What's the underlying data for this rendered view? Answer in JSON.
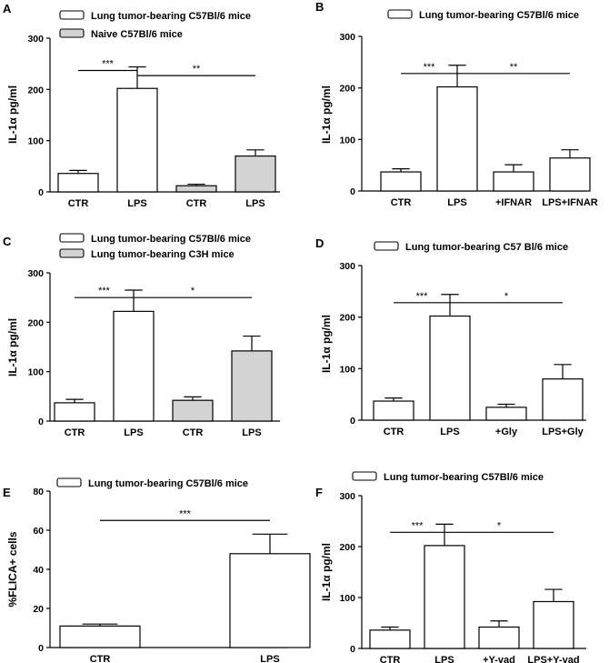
{
  "colors": {
    "white": "#ffffff",
    "gray": "#d3d3d3",
    "ink": "#000000"
  },
  "chart_data": [
    {
      "panel": "A",
      "type": "bar",
      "ylabel": "IL-1α pg/ml",
      "ylim": [
        0,
        300
      ],
      "yticks": [
        "0",
        "100",
        "200",
        "300"
      ],
      "legend": [
        {
          "label": "Lung tumor-bearing C57Bl/6 mice",
          "fill": "white"
        },
        {
          "label": "Naive C57Bl/6 mice",
          "fill": "gray"
        }
      ],
      "categories": [
        "CTR",
        "LPS",
        "CTR",
        "LPS"
      ],
      "values": [
        36,
        202,
        12,
        70
      ],
      "errors": [
        6,
        42,
        3,
        12
      ],
      "fills": [
        "white",
        "white",
        "gray",
        "gray"
      ],
      "significance": [
        {
          "from": 0,
          "to": 1,
          "y": 237,
          "label": "***"
        },
        {
          "from": 1,
          "to": 3,
          "y": 227,
          "label": "**"
        }
      ]
    },
    {
      "panel": "B",
      "type": "bar",
      "ylabel": "IL-1α pg/ml",
      "ylim": [
        0,
        300
      ],
      "yticks": [
        "0",
        "100",
        "200",
        "300"
      ],
      "legend": [
        {
          "label": "Lung tumor-bearing C57Bl/6 mice",
          "fill": "white"
        }
      ],
      "categories": [
        "CTR",
        "LPS",
        "+IFNAR",
        "LPS+IFNAR"
      ],
      "values": [
        37,
        202,
        37,
        64
      ],
      "errors": [
        6,
        42,
        14,
        16
      ],
      "fills": [
        "white",
        "white",
        "white",
        "white"
      ],
      "significance": [
        {
          "from": 0,
          "to": 1,
          "y": 228,
          "label": "***"
        },
        {
          "from": 1,
          "to": 3,
          "y": 228,
          "label": "**"
        }
      ]
    },
    {
      "panel": "C",
      "type": "bar",
      "ylabel": "IL-1α pg/ml",
      "ylim": [
        0,
        300
      ],
      "yticks": [
        "0",
        "100",
        "200",
        "300"
      ],
      "legend": [
        {
          "label": "Lung tumor-bearing C57Bl/6 mice",
          "fill": "white"
        },
        {
          "label": "Lung tumor-bearing C3H mice",
          "fill": "gray"
        }
      ],
      "categories": [
        "CTR",
        "LPS",
        "CTR",
        "LPS"
      ],
      "values": [
        37,
        222,
        42,
        142
      ],
      "errors": [
        7,
        43,
        7,
        30
      ],
      "fills": [
        "white",
        "white",
        "gray",
        "gray"
      ],
      "significance": [
        {
          "from": 0,
          "to": 1,
          "y": 250,
          "label": "***"
        },
        {
          "from": 1,
          "to": 3,
          "y": 250,
          "label": "*"
        }
      ]
    },
    {
      "panel": "D",
      "type": "bar",
      "ylabel": "IL-1α pg/ml",
      "ylim": [
        0,
        300
      ],
      "yticks": [
        "0",
        "100",
        "200",
        "300"
      ],
      "legend": [
        {
          "label": "Lung tumor-bearing C57 Bl/6 mice",
          "fill": "white"
        }
      ],
      "categories": [
        "CTR",
        "LPS",
        "+Gly",
        "LPS+Gly"
      ],
      "values": [
        37,
        202,
        25,
        80
      ],
      "errors": [
        6,
        42,
        6,
        28
      ],
      "fills": [
        "white",
        "white",
        "white",
        "white"
      ],
      "significance": [
        {
          "from": 0,
          "to": 1,
          "y": 228,
          "label": "***"
        },
        {
          "from": 1,
          "to": 3,
          "y": 228,
          "label": "*"
        }
      ]
    },
    {
      "panel": "E",
      "type": "bar",
      "ylabel": "%FLICA+ cells",
      "ylim": [
        0,
        80
      ],
      "yticks": [
        "0",
        "20",
        "40",
        "60",
        "80"
      ],
      "legend": [
        {
          "label": "Lung tumor-bearing C57Bl/6 mice",
          "fill": "white"
        }
      ],
      "categories": [
        "CTR",
        "LPS"
      ],
      "values": [
        11,
        48
      ],
      "errors": [
        1,
        10
      ],
      "fills": [
        "white",
        "white"
      ],
      "significance": [
        {
          "from": 0,
          "to": 1,
          "y": 65,
          "label": "***"
        }
      ]
    },
    {
      "panel": "F",
      "type": "bar",
      "ylabel": "IL-1α pg/ml",
      "ylim": [
        0,
        300
      ],
      "yticks": [
        "0",
        "100",
        "200",
        "300"
      ],
      "legend": [
        {
          "label": "Lung tumor-bearing C57Bl/6 mice",
          "fill": "white"
        }
      ],
      "categories": [
        "CTR",
        "LPS",
        "+Y-vad",
        "LPS+Y-vad"
      ],
      "values": [
        36,
        202,
        42,
        92
      ],
      "errors": [
        6,
        42,
        12,
        24
      ],
      "fills": [
        "white",
        "white",
        "white",
        "white"
      ],
      "significance": [
        {
          "from": 0,
          "to": 1,
          "y": 228,
          "label": "***"
        },
        {
          "from": 1,
          "to": 3,
          "y": 228,
          "label": "*"
        }
      ]
    }
  ]
}
